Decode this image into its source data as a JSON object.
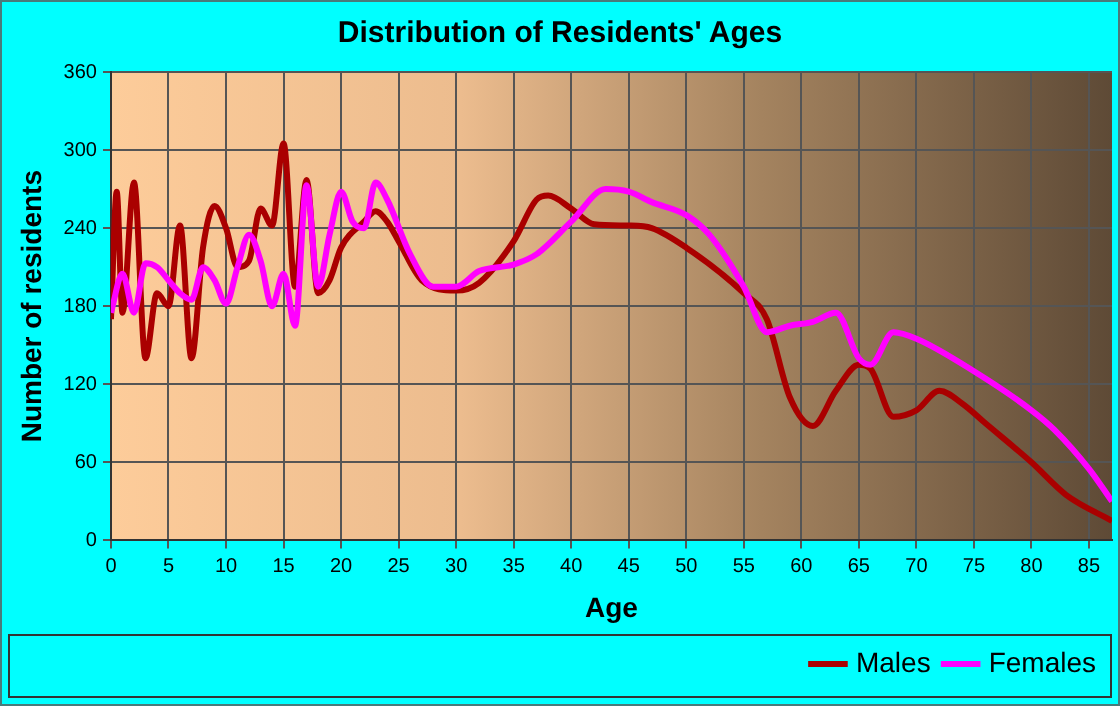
{
  "chart_data": {
    "type": "line",
    "title": "Distribution of Residents' Ages",
    "xlabel": "Age",
    "ylabel": "Number of residents",
    "xlim": [
      0,
      87
    ],
    "xticks": [
      0,
      5,
      10,
      15,
      20,
      25,
      30,
      35,
      40,
      45,
      50,
      55,
      60,
      65,
      70,
      75,
      80,
      85
    ],
    "ylim": [
      0,
      360
    ],
    "yticks": [
      0,
      60,
      120,
      180,
      240,
      300,
      360
    ],
    "grid": true,
    "legend": "bottom right",
    "marker": "none",
    "line_style": "solid",
    "series": [
      {
        "name": "Males",
        "color": "#aa0000",
        "x": [
          0,
          0.5,
          1,
          2,
          3,
          4,
          5,
          6,
          7,
          8,
          9,
          10,
          11,
          12,
          13,
          14,
          15,
          16,
          17,
          18,
          19,
          20,
          22,
          23,
          24,
          25,
          27,
          30,
          32,
          35,
          37,
          38,
          40,
          42,
          45,
          47,
          50,
          55,
          57,
          59,
          61,
          63,
          65,
          66,
          68,
          70,
          72,
          74,
          76,
          80,
          83,
          87
        ],
        "values": [
          170,
          268,
          175,
          275,
          140,
          190,
          180,
          242,
          140,
          225,
          257,
          240,
          210,
          215,
          255,
          242,
          305,
          195,
          277,
          190,
          200,
          225,
          245,
          253,
          245,
          230,
          200,
          192,
          198,
          230,
          262,
          265,
          255,
          243,
          242,
          240,
          225,
          190,
          170,
          110,
          88,
          115,
          135,
          132,
          95,
          100,
          115,
          105,
          90,
          60,
          35,
          15
        ]
      },
      {
        "name": "Females",
        "color": "#ff00ff",
        "x": [
          0,
          1,
          2,
          3,
          4,
          5,
          6,
          7,
          8,
          9,
          10,
          11,
          12,
          13,
          14,
          15,
          16,
          17,
          18,
          19,
          20,
          21,
          22,
          23,
          24,
          26,
          28,
          30,
          32,
          35,
          37,
          40,
          43,
          45,
          47,
          50,
          52,
          55,
          57,
          59,
          61,
          63,
          65,
          66,
          68,
          70,
          75,
          80,
          82,
          85,
          87
        ],
        "values": [
          175,
          205,
          175,
          213,
          210,
          200,
          190,
          185,
          210,
          200,
          182,
          210,
          235,
          215,
          180,
          205,
          165,
          273,
          195,
          235,
          268,
          245,
          240,
          275,
          262,
          220,
          195,
          195,
          207,
          212,
          220,
          245,
          270,
          268,
          260,
          250,
          235,
          195,
          160,
          165,
          168,
          175,
          140,
          135,
          160,
          155,
          130,
          100,
          85,
          55,
          30
        ]
      }
    ]
  }
}
